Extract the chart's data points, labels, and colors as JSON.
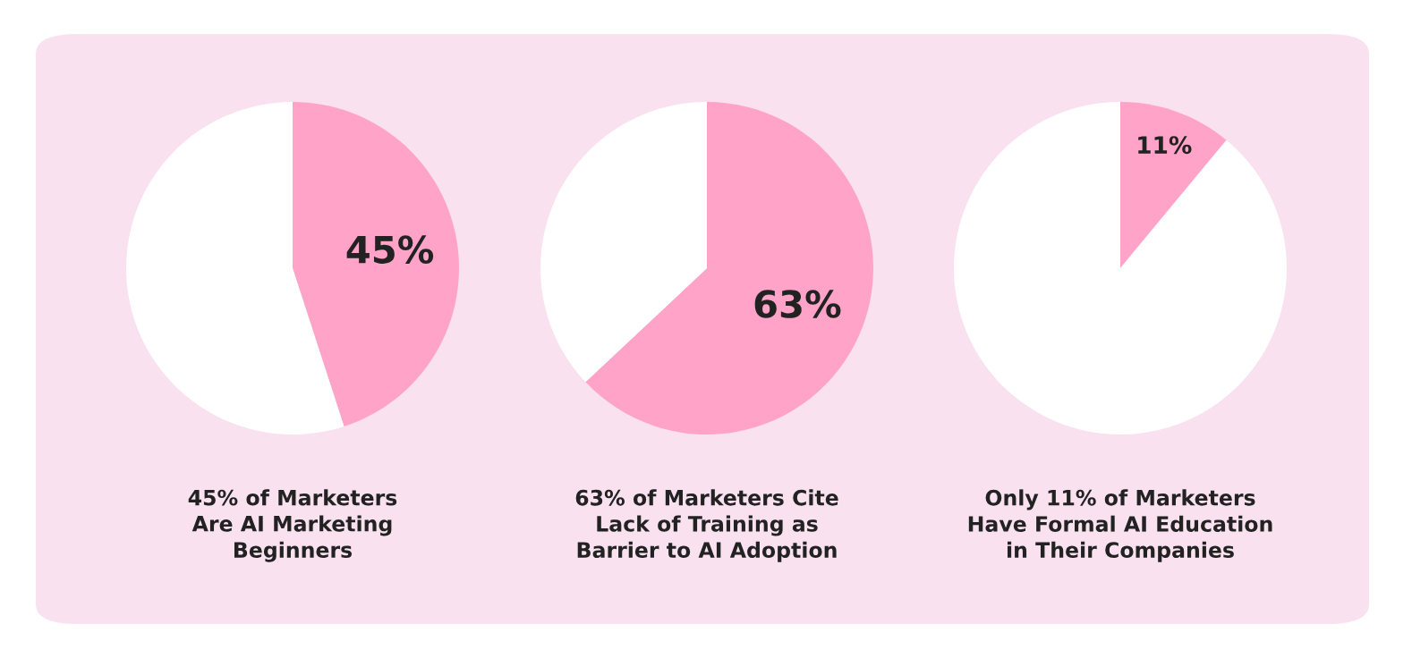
{
  "chart_data": [
    {
      "type": "pie",
      "title": "45% of Marketers\nAre AI Marketing\nBeginners",
      "categories": [
        null,
        null
      ],
      "values": [
        45,
        55
      ],
      "colors": [
        "#ffa3c8",
        "#ffffff"
      ],
      "value_labels": [
        "45%",
        null
      ]
    },
    {
      "type": "pie",
      "title": "63% of Marketers Cite\nLack of Training as\nBarrier to AI Adoption",
      "categories": [
        null,
        null
      ],
      "values": [
        63,
        37
      ],
      "colors": [
        "#ffa3c8",
        "#ffffff"
      ],
      "value_labels": [
        "63%",
        null
      ]
    },
    {
      "type": "pie",
      "title": "Only 11% of Marketers\nHave Formal AI Education\nin Their Companies",
      "categories": [
        null,
        null
      ],
      "values": [
        11,
        89
      ],
      "colors": [
        "#ffa3c8",
        "#ffffff"
      ],
      "value_labels": [
        "11%",
        null
      ]
    }
  ]
}
